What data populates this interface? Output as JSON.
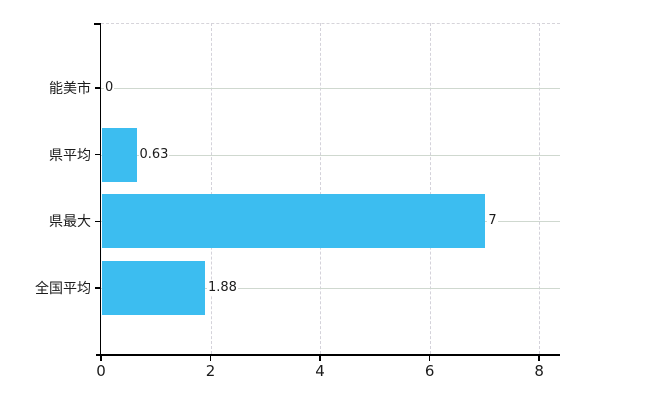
{
  "chart_data": {
    "type": "bar",
    "orientation": "horizontal",
    "title": "",
    "xlabel": "",
    "ylabel": "",
    "categories": [
      "能美市",
      "県平均",
      "県最大",
      "全国平均"
    ],
    "values": [
      0,
      0.63,
      7,
      1.88
    ],
    "value_labels": [
      "0",
      "0.63",
      "7",
      "1.88"
    ],
    "x_tick_labels": [
      "0",
      "2",
      "4",
      "6",
      "8"
    ],
    "x_tick_values": [
      0,
      2,
      4,
      6,
      8
    ],
    "xlim": [
      0,
      8.38
    ],
    "grid": "on",
    "legend_position": "none",
    "colors": {
      "bar": "#3cbdf0",
      "horizontal_gridline": "#cfd8cf",
      "vertical_gridline": "#d4d2da",
      "plot_border": "#d6d4da",
      "axis": "#000000",
      "text": "#1c1c1c",
      "background": "#ffffff"
    }
  }
}
